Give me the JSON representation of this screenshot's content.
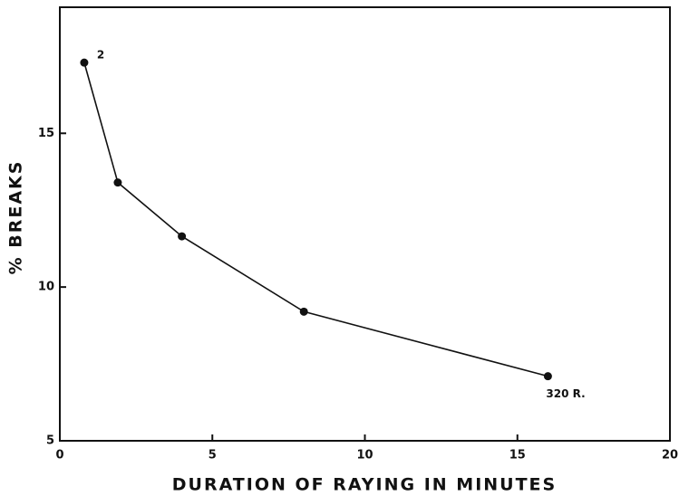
{
  "chart_data": {
    "type": "line",
    "xlabel": "DURATION OF RAYING IN MINUTES",
    "ylabel": "% BREAKS",
    "x": [
      0.8,
      1.9,
      4.0,
      8.0,
      16.0
    ],
    "values": [
      17.3,
      13.4,
      11.65,
      9.2,
      7.1
    ],
    "color": "#111111",
    "annotations": [
      "2",
      "320 R."
    ],
    "xlim": [
      0,
      20
    ],
    "xticks": [
      0,
      5,
      10,
      15,
      20
    ],
    "ylim": [
      5,
      19.1
    ],
    "yticks": [
      5,
      10,
      15
    ],
    "grid": false
  }
}
